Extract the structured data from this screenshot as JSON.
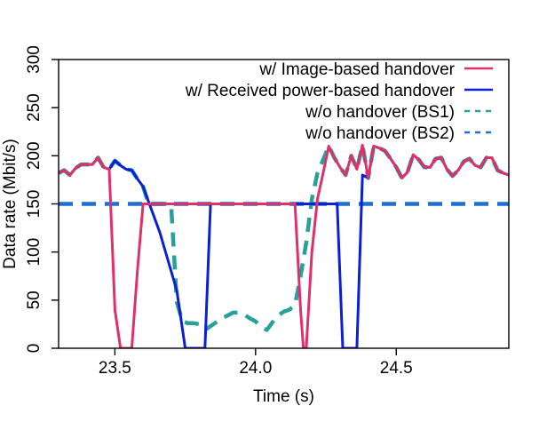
{
  "chart_data": {
    "type": "line",
    "title": "",
    "xlabel": "Time (s)",
    "ylabel": "Data rate (Mbit/s)",
    "xlim": [
      23.3,
      24.9
    ],
    "ylim": [
      0,
      300
    ],
    "x_ticks": [
      23.5,
      24.0,
      24.5
    ],
    "x_tick_labels": [
      "23.5",
      "24.0",
      "24.5"
    ],
    "y_ticks": [
      0,
      50,
      100,
      150,
      200,
      250,
      300
    ],
    "y_tick_labels": [
      "0",
      "50",
      "100",
      "150",
      "200",
      "250",
      "300"
    ],
    "grid": false,
    "legend_position": "top-right",
    "series": [
      {
        "name": "w/o handover (BS1)",
        "color": "#2aa198",
        "dash": "dashed",
        "points": [
          [
            23.3,
            182
          ],
          [
            23.32,
            185
          ],
          [
            23.34,
            180
          ],
          [
            23.36,
            187
          ],
          [
            23.38,
            191
          ],
          [
            23.4,
            191
          ],
          [
            23.42,
            191
          ],
          [
            23.44,
            198
          ],
          [
            23.46,
            188
          ],
          [
            23.48,
            186
          ],
          [
            23.5,
            195
          ],
          [
            23.52,
            190
          ],
          [
            23.54,
            186
          ],
          [
            23.56,
            185
          ],
          [
            23.58,
            176
          ],
          [
            23.6,
            168
          ],
          [
            23.62,
            150
          ],
          [
            23.64,
            150
          ],
          [
            23.66,
            150
          ],
          [
            23.68,
            150
          ],
          [
            23.7,
            149
          ],
          [
            23.72,
            48
          ],
          [
            23.74,
            28
          ],
          [
            23.76,
            26
          ],
          [
            23.78,
            26
          ],
          [
            23.8,
            25
          ],
          [
            23.82,
            19
          ],
          [
            23.84,
            23
          ],
          [
            23.86,
            27
          ],
          [
            23.88,
            31
          ],
          [
            23.9,
            34
          ],
          [
            23.92,
            37
          ],
          [
            23.94,
            37
          ],
          [
            23.96,
            35
          ],
          [
            23.98,
            31
          ],
          [
            24.0,
            28
          ],
          [
            24.02,
            22
          ],
          [
            24.04,
            19
          ],
          [
            24.06,
            27
          ],
          [
            24.08,
            34
          ],
          [
            24.1,
            38
          ],
          [
            24.12,
            40
          ],
          [
            24.14,
            45
          ],
          [
            24.16,
            75
          ],
          [
            24.18,
            110
          ],
          [
            24.2,
            155
          ],
          [
            24.22,
            182
          ],
          [
            24.24,
            196
          ],
          [
            24.26,
            210
          ],
          [
            24.28,
            198
          ],
          [
            24.3,
            188
          ],
          [
            24.32,
            180
          ],
          [
            24.34,
            200
          ],
          [
            24.36,
            186
          ],
          [
            24.38,
            211
          ],
          [
            24.4,
            177
          ],
          [
            24.42,
            210
          ],
          [
            24.44,
            208
          ],
          [
            24.46,
            205
          ],
          [
            24.48,
            197
          ],
          [
            24.5,
            188
          ],
          [
            24.52,
            177
          ],
          [
            24.54,
            183
          ],
          [
            24.56,
            201
          ],
          [
            24.58,
            196
          ],
          [
            24.6,
            188
          ],
          [
            24.62,
            188
          ],
          [
            24.64,
            197
          ],
          [
            24.66,
            198
          ],
          [
            24.68,
            186
          ],
          [
            24.7,
            179
          ],
          [
            24.72,
            185
          ],
          [
            24.74,
            194
          ],
          [
            24.76,
            197
          ],
          [
            24.78,
            190
          ],
          [
            24.8,
            188
          ],
          [
            24.82,
            198
          ],
          [
            24.84,
            198
          ],
          [
            24.86,
            185
          ],
          [
            24.88,
            182
          ],
          [
            24.9,
            180
          ]
        ]
      },
      {
        "name": "w/o handover (BS2)",
        "color": "#1f6fd1",
        "dash": "dashed",
        "points": [
          [
            23.3,
            150
          ],
          [
            24.9,
            150
          ]
        ]
      },
      {
        "name": "w/ Received power-based handover",
        "color": "#0b1fd6",
        "dash": "solid",
        "points": [
          [
            23.3,
            182
          ],
          [
            23.32,
            185
          ],
          [
            23.34,
            180
          ],
          [
            23.36,
            187
          ],
          [
            23.38,
            191
          ],
          [
            23.4,
            191
          ],
          [
            23.42,
            191
          ],
          [
            23.44,
            198
          ],
          [
            23.46,
            188
          ],
          [
            23.48,
            186
          ],
          [
            23.5,
            195
          ],
          [
            23.52,
            190
          ],
          [
            23.54,
            186
          ],
          [
            23.56,
            185
          ],
          [
            23.58,
            176
          ],
          [
            23.6,
            168
          ],
          [
            23.66,
            120
          ],
          [
            23.72,
            60
          ],
          [
            23.75,
            0
          ],
          [
            23.79,
            0
          ],
          [
            23.82,
            0
          ],
          [
            23.84,
            150
          ],
          [
            23.86,
            150
          ],
          [
            24.1,
            150
          ],
          [
            24.26,
            150
          ],
          [
            24.29,
            150
          ],
          [
            24.31,
            0
          ],
          [
            24.36,
            0
          ],
          [
            24.38,
            180
          ],
          [
            24.4,
            177
          ],
          [
            24.42,
            210
          ],
          [
            24.44,
            208
          ],
          [
            24.46,
            205
          ],
          [
            24.48,
            197
          ],
          [
            24.5,
            188
          ],
          [
            24.52,
            177
          ],
          [
            24.54,
            183
          ],
          [
            24.56,
            201
          ],
          [
            24.58,
            196
          ],
          [
            24.6,
            188
          ],
          [
            24.62,
            188
          ],
          [
            24.64,
            197
          ],
          [
            24.66,
            198
          ],
          [
            24.68,
            186
          ],
          [
            24.7,
            179
          ],
          [
            24.72,
            185
          ],
          [
            24.74,
            194
          ],
          [
            24.76,
            197
          ],
          [
            24.78,
            190
          ],
          [
            24.8,
            188
          ],
          [
            24.82,
            198
          ],
          [
            24.84,
            198
          ],
          [
            24.86,
            185
          ],
          [
            24.88,
            182
          ],
          [
            24.9,
            180
          ]
        ]
      },
      {
        "name": "w/ Image-based handover",
        "color": "#e0306a",
        "dash": "solid",
        "points": [
          [
            23.3,
            182
          ],
          [
            23.32,
            185
          ],
          [
            23.34,
            180
          ],
          [
            23.36,
            187
          ],
          [
            23.38,
            191
          ],
          [
            23.4,
            191
          ],
          [
            23.42,
            191
          ],
          [
            23.44,
            198
          ],
          [
            23.46,
            188
          ],
          [
            23.48,
            186
          ],
          [
            23.5,
            40
          ],
          [
            23.52,
            0
          ],
          [
            23.56,
            0
          ],
          [
            23.58,
            80
          ],
          [
            23.6,
            150
          ],
          [
            24.0,
            150
          ],
          [
            24.1,
            150
          ],
          [
            24.14,
            150
          ],
          [
            24.16,
            40
          ],
          [
            24.17,
            0
          ],
          [
            24.18,
            0
          ],
          [
            24.2,
            100
          ],
          [
            24.22,
            155
          ],
          [
            24.24,
            182
          ],
          [
            24.26,
            210
          ],
          [
            24.28,
            198
          ],
          [
            24.3,
            188
          ],
          [
            24.32,
            180
          ],
          [
            24.34,
            200
          ],
          [
            24.36,
            186
          ],
          [
            24.38,
            211
          ],
          [
            24.4,
            177
          ],
          [
            24.42,
            210
          ],
          [
            24.44,
            208
          ],
          [
            24.46,
            205
          ],
          [
            24.48,
            197
          ],
          [
            24.5,
            188
          ],
          [
            24.52,
            177
          ],
          [
            24.54,
            183
          ],
          [
            24.56,
            201
          ],
          [
            24.58,
            196
          ],
          [
            24.6,
            188
          ],
          [
            24.62,
            188
          ],
          [
            24.64,
            197
          ],
          [
            24.66,
            198
          ],
          [
            24.68,
            186
          ],
          [
            24.7,
            179
          ],
          [
            24.72,
            185
          ],
          [
            24.74,
            194
          ],
          [
            24.76,
            197
          ],
          [
            24.78,
            190
          ],
          [
            24.8,
            188
          ],
          [
            24.82,
            198
          ],
          [
            24.84,
            198
          ],
          [
            24.86,
            185
          ],
          [
            24.88,
            182
          ],
          [
            24.9,
            180
          ]
        ]
      }
    ],
    "legend": [
      {
        "label": "w/ Image-based handover",
        "color": "#e0306a",
        "dash": "solid"
      },
      {
        "label": "w/ Received power-based handover",
        "color": "#0b1fd6",
        "dash": "solid"
      },
      {
        "label": "w/o handover (BS1)",
        "color": "#2aa198",
        "dash": "dashed"
      },
      {
        "label": "w/o handover (BS2)",
        "color": "#1f6fd1",
        "dash": "dashed"
      }
    ]
  }
}
